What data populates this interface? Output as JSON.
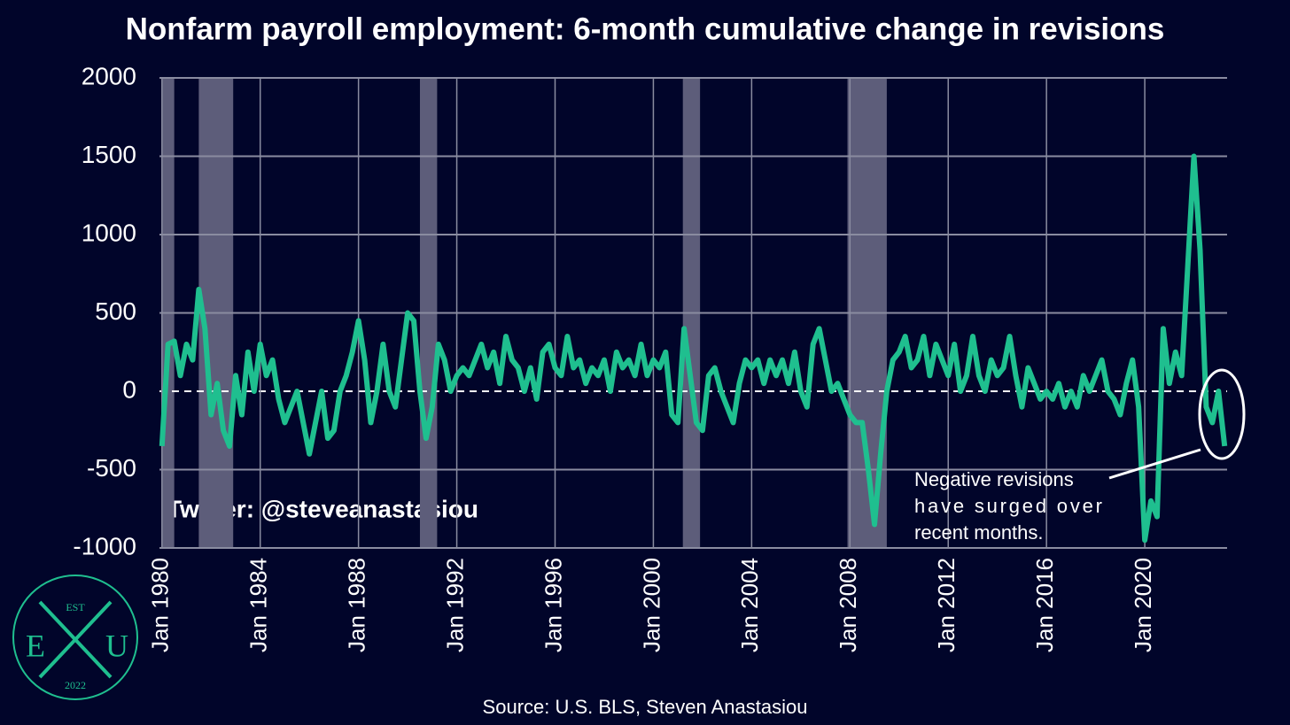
{
  "chart_data": {
    "type": "line",
    "title": "Nonfarm payroll employment: 6-month cumulative change in revisions",
    "source": "Source: U.S. BLS, Steven Anastasiou",
    "watermark": "Twitter: @steveanastasiou",
    "logo": {
      "top": "EST",
      "left": "E",
      "right": "U",
      "bottom": "2022"
    },
    "annotation": [
      "Negative revisions",
      "have surged over",
      "recent months."
    ],
    "xlim": [
      1979.9,
      2023.35
    ],
    "ylim": [
      -1000,
      2000
    ],
    "yticks": [
      -1000,
      -500,
      0,
      500,
      1000,
      1500,
      2000
    ],
    "xticks": [
      {
        "value": 1980,
        "label": "Jan 1980"
      },
      {
        "value": 1984,
        "label": "Jan 1984"
      },
      {
        "value": 1988,
        "label": "Jan 1988"
      },
      {
        "value": 1992,
        "label": "Jan 1992"
      },
      {
        "value": 1996,
        "label": "Jan 1996"
      },
      {
        "value": 2000,
        "label": "Jan 2000"
      },
      {
        "value": 2004,
        "label": "Jan 2004"
      },
      {
        "value": 2008,
        "label": "Jan 2008"
      },
      {
        "value": 2012,
        "label": "Jan 2012"
      },
      {
        "value": 2016,
        "label": "Jan 2016"
      },
      {
        "value": 2020,
        "label": "Jan 2020"
      }
    ],
    "grid": true,
    "shaded_ranges": [
      [
        1980.0,
        1980.5
      ],
      [
        1981.5,
        1982.9
      ],
      [
        1990.5,
        1991.2
      ],
      [
        2001.2,
        2001.9
      ],
      [
        2007.9,
        2009.5
      ]
    ],
    "shade_color": "#5d5d7a",
    "x": [
      1980,
      1980.25,
      1980.5,
      1980.75,
      1981,
      1981.25,
      1981.5,
      1981.75,
      1982,
      1982.25,
      1982.5,
      1982.75,
      1983,
      1983.25,
      1983.5,
      1983.75,
      1984,
      1984.25,
      1984.5,
      1984.75,
      1985,
      1985.25,
      1985.5,
      1985.75,
      1986,
      1986.25,
      1986.5,
      1986.75,
      1987,
      1987.25,
      1987.5,
      1987.75,
      1988,
      1988.25,
      1988.5,
      1988.75,
      1989,
      1989.25,
      1989.5,
      1989.75,
      1990,
      1990.25,
      1990.5,
      1990.75,
      1991,
      1991.25,
      1991.5,
      1991.75,
      1992,
      1992.25,
      1992.5,
      1992.75,
      1993,
      1993.25,
      1993.5,
      1993.75,
      1994,
      1994.25,
      1994.5,
      1994.75,
      1995,
      1995.25,
      1995.5,
      1995.75,
      1996,
      1996.25,
      1996.5,
      1996.75,
      1997,
      1997.25,
      1997.5,
      1997.75,
      1998,
      1998.25,
      1998.5,
      1998.75,
      1999,
      1999.25,
      1999.5,
      1999.75,
      2000,
      2000.25,
      2000.5,
      2000.75,
      2001,
      2001.25,
      2001.5,
      2001.75,
      2002,
      2002.25,
      2002.5,
      2002.75,
      2003,
      2003.25,
      2003.5,
      2003.75,
      2004,
      2004.25,
      2004.5,
      2004.75,
      2005,
      2005.25,
      2005.5,
      2005.75,
      2006,
      2006.25,
      2006.5,
      2006.75,
      2007,
      2007.25,
      2007.5,
      2007.75,
      2008,
      2008.25,
      2008.5,
      2008.75,
      2009,
      2009.25,
      2009.5,
      2009.75,
      2010,
      2010.25,
      2010.5,
      2010.75,
      2011,
      2011.25,
      2011.5,
      2011.75,
      2012,
      2012.25,
      2012.5,
      2012.75,
      2013,
      2013.25,
      2013.5,
      2013.75,
      2014,
      2014.25,
      2014.5,
      2014.75,
      2015,
      2015.25,
      2015.5,
      2015.75,
      2016,
      2016.25,
      2016.5,
      2016.75,
      2017,
      2017.25,
      2017.5,
      2017.75,
      2018,
      2018.25,
      2018.5,
      2018.75,
      2019,
      2019.25,
      2019.5,
      2019.75,
      2020,
      2020.25,
      2020.5,
      2020.75,
      2021,
      2021.25,
      2021.5,
      2021.75,
      2022,
      2022.25,
      2022.5,
      2022.75,
      2023,
      2023.25
    ],
    "series": [
      {
        "color": "#1fbf8f",
        "values": [
          -350,
          300,
          320,
          100,
          300,
          200,
          650,
          400,
          -150,
          50,
          -250,
          -350,
          100,
          -150,
          250,
          0,
          300,
          100,
          200,
          -50,
          -200,
          -100,
          0,
          -200,
          -400,
          -200,
          0,
          -300,
          -250,
          0,
          100,
          250,
          450,
          200,
          -200,
          0,
          300,
          0,
          -100,
          200,
          500,
          450,
          0,
          -300,
          -100,
          300,
          200,
          0,
          100,
          150,
          100,
          200,
          300,
          150,
          250,
          50,
          350,
          200,
          150,
          0,
          150,
          -50,
          250,
          300,
          150,
          100,
          350,
          150,
          200,
          50,
          150,
          100,
          200,
          0,
          250,
          150,
          200,
          100,
          300,
          100,
          200,
          150,
          250,
          -150,
          -200,
          400,
          100,
          -200,
          -250,
          100,
          150,
          0,
          -100,
          -200,
          50,
          200,
          150,
          200,
          50,
          200,
          100,
          200,
          50,
          250,
          0,
          -100,
          300,
          400,
          200,
          0,
          50,
          -50,
          -150,
          -200,
          -200,
          -500,
          -850,
          -400,
          0,
          200,
          250,
          350,
          150,
          200,
          350,
          100,
          300,
          200,
          100,
          300,
          0,
          100,
          350,
          100,
          0,
          200,
          100,
          150,
          350,
          100,
          -100,
          150,
          50,
          -50,
          0,
          -50,
          50,
          -100,
          0,
          -100,
          100,
          0,
          100,
          200,
          0,
          -50,
          -150,
          50,
          200,
          -100,
          -950,
          -700,
          -800,
          400,
          50,
          250,
          100,
          800,
          1500,
          900,
          -100,
          -200,
          0,
          -350
        ]
      }
    ]
  }
}
